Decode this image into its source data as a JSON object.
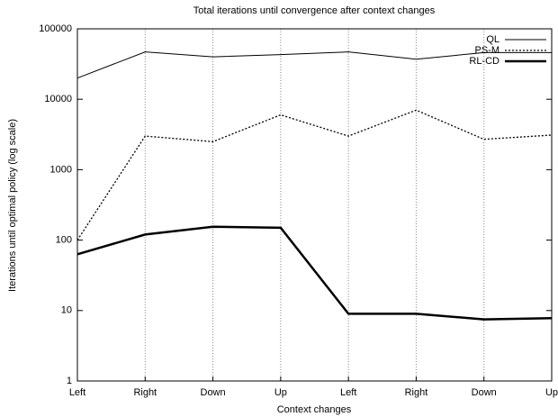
{
  "chart_data": {
    "type": "line",
    "title": "Total iterations until convergence after context changes",
    "x_label": "Context changes",
    "y_label": "Iterations until optimal policy (log scale)",
    "categories": [
      "Left",
      "Right",
      "Down",
      "Up",
      "Left",
      "Right",
      "Down",
      "Up"
    ],
    "series": [
      {
        "name": "QL",
        "color": "#000000",
        "dash": "none",
        "width": 1,
        "values": [
          20000,
          47000,
          40000,
          43000,
          47000,
          37000,
          46000,
          46000
        ]
      },
      {
        "name": "PS-M",
        "color": "#000000",
        "dash": "2,2",
        "width": 1.3,
        "values": [
          100,
          3000,
          2500,
          6000,
          3000,
          7000,
          2700,
          3100
        ]
      },
      {
        "name": "RL-CD",
        "color": "#000000",
        "dash": "none",
        "width": 2.5,
        "values": [
          63,
          120,
          155,
          150,
          9,
          9,
          7.5,
          7.8
        ]
      }
    ],
    "ylim": [
      1,
      100000
    ],
    "yticks": [
      1,
      10,
      100,
      1000,
      10000,
      100000
    ],
    "log_y": true,
    "xgrid": true,
    "legend": "upper-right"
  }
}
